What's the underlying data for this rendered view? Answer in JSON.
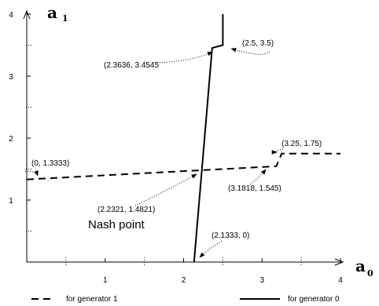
{
  "chart_data": {
    "type": "line",
    "xlabel": "a",
    "xlabel_sub": "0",
    "ylabel": "a",
    "ylabel_sub": "1",
    "xlim": [
      0,
      4
    ],
    "ylim": [
      0,
      4
    ],
    "x_ticks": [
      "1",
      "2",
      "3",
      "4"
    ],
    "y_ticks": [
      "1",
      "2",
      "3",
      "4"
    ],
    "grid": false,
    "series": [
      {
        "name": "for generator 1",
        "style": "dashed",
        "points": [
          [
            0,
            1.3333
          ],
          [
            2.2321,
            1.4821
          ],
          [
            3.1818,
            1.545
          ],
          [
            3.25,
            1.75
          ],
          [
            4,
            1.75
          ]
        ]
      },
      {
        "name": "for generator 0",
        "style": "solid",
        "points": [
          [
            2.1333,
            0
          ],
          [
            2.2321,
            1.4821
          ],
          [
            2.3636,
            3.4545
          ],
          [
            2.5,
            3.5
          ],
          [
            2.5,
            4
          ]
        ]
      }
    ],
    "annotations": [
      {
        "text": "(2.3636, 3.4545",
        "x": 2.3636,
        "y": 3.4545
      },
      {
        "text": "(2.5,  3.5)",
        "x": 2.5,
        "y": 3.5
      },
      {
        "text": "(0, 1.3333)",
        "x": 0,
        "y": 1.3333
      },
      {
        "text": "(3.25, 1.75)",
        "x": 3.25,
        "y": 1.75
      },
      {
        "text": "(3.1818, 1.545)",
        "x": 3.1818,
        "y": 1.545
      },
      {
        "text": "(2.2321, 1.4821)",
        "x": 2.2321,
        "y": 1.4821
      },
      {
        "text": "(2.1333, 0)",
        "x": 2.1333,
        "y": 0
      }
    ],
    "nash_label": "Nash point",
    "legend": [
      {
        "label": "for generator 1",
        "style": "dashed"
      },
      {
        "label": "for generator 0",
        "style": "solid"
      }
    ],
    "legend_position": "bottom",
    "color": "#000000"
  }
}
